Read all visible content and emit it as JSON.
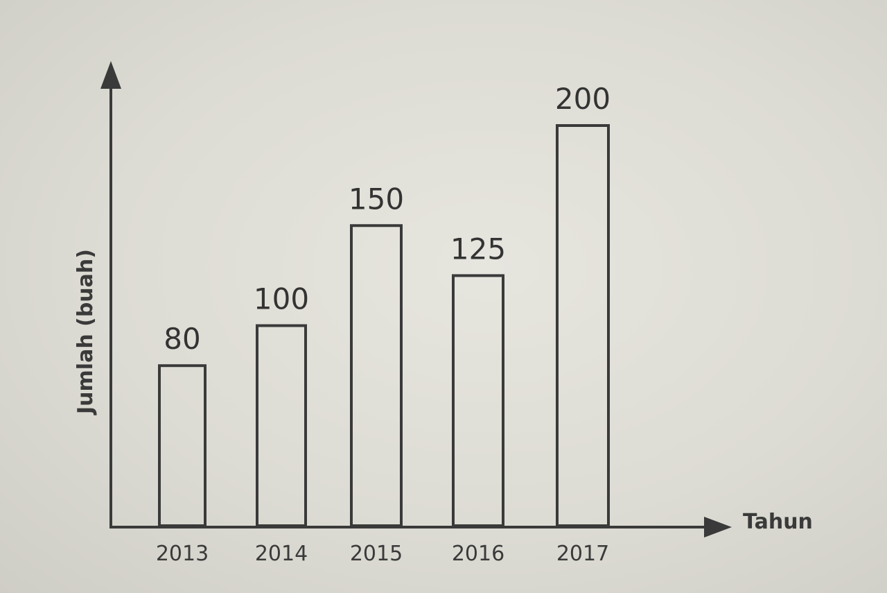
{
  "chart_data": {
    "type": "bar",
    "categories": [
      "2013",
      "2014",
      "2015",
      "2016",
      "2017"
    ],
    "values": [
      80,
      100,
      150,
      125,
      200
    ],
    "data_labels": [
      "80",
      "100",
      "150",
      "125",
      "200"
    ],
    "title": "",
    "xlabel": "Tahun",
    "ylabel": "Jumlah (buah)",
    "ylim": [
      0,
      230
    ],
    "grid": false,
    "bar_style": "outline",
    "stroke_color": "#3a3a3a"
  }
}
